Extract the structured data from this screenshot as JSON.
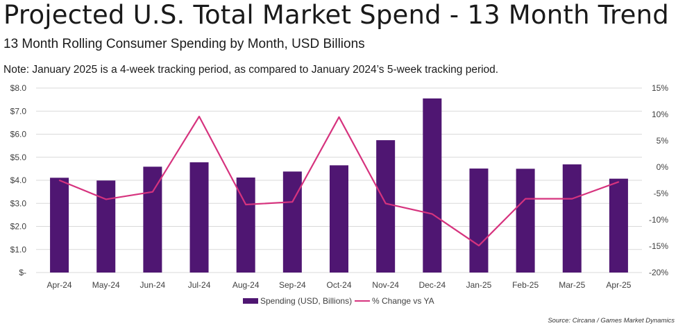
{
  "title": "Projected U.S. Total Market Spend - 13 Month Trend",
  "subtitle": "13 Month Rolling Consumer Spending by Month, USD Billions",
  "note": "Note: January 2025 is a 4-week tracking period, as compared to January 2024’s 5-week tracking period.",
  "source": "Source: Circana / Games Market Dynamics",
  "colors": {
    "bar": "#4f1672",
    "line": "#d6337e",
    "grid": "#d9d9d9"
  },
  "chart_data": {
    "type": "bar",
    "categories": [
      "Apr-24",
      "May-24",
      "Jun-24",
      "Jul-24",
      "Aug-24",
      "Sep-24",
      "Oct-24",
      "Nov-24",
      "Dec-24",
      "Jan-25",
      "Feb-25",
      "Mar-25",
      "Apr-25"
    ],
    "series": [
      {
        "name": "Spending (USD, Billions)",
        "type": "bar",
        "axis": "left",
        "values": [
          4.11,
          3.99,
          4.59,
          4.78,
          4.12,
          4.38,
          4.65,
          5.74,
          7.55,
          4.51,
          4.5,
          4.69,
          4.07
        ]
      },
      {
        "name": "% Change vs YA",
        "type": "line",
        "axis": "right",
        "values": [
          -2.5,
          -6.1,
          -4.7,
          9.6,
          -7.1,
          -6.6,
          9.5,
          -6.9,
          -8.9,
          -14.9,
          -6.0,
          -6.0,
          -2.8
        ]
      }
    ],
    "y_left": {
      "min": 0,
      "max": 8,
      "step": 1,
      "tick_labels": [
        "$-",
        "$1.0",
        "$2.0",
        "$3.0",
        "$4.0",
        "$5.0",
        "$6.0",
        "$7.0",
        "$8.0"
      ]
    },
    "y_right": {
      "min": -20,
      "max": 15,
      "step": 5,
      "tick_labels": [
        "-20%",
        "-15%",
        "-10%",
        "-5%",
        "0%",
        "5%",
        "10%",
        "15%"
      ]
    },
    "grid": true,
    "legend_position": "bottom"
  }
}
